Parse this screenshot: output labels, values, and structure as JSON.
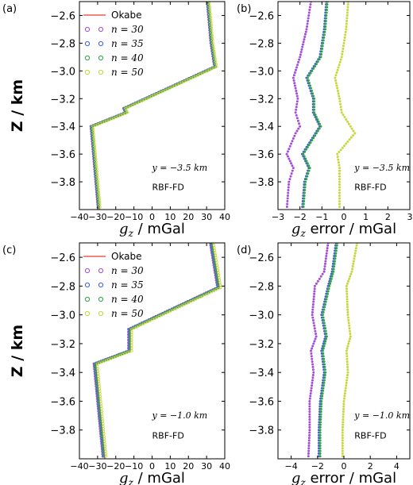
{
  "colors": {
    "okabe": "#e8402a",
    "n30": "#a44dd9",
    "n35": "#3d5fd8",
    "n40": "#2e9e4a",
    "n50": "#c6d83b",
    "axis": "#000000"
  },
  "legend": {
    "okabe": "Okabe",
    "n30": "n = 30",
    "n35": "n = 35",
    "n40": "n = 40",
    "n50": "n = 50"
  },
  "chart_data": [
    {
      "panel": "(a)",
      "type": "line",
      "xlabel": "g_z / mGal",
      "ylabel": "Z / km",
      "xlim": [
        -40,
        40
      ],
      "ylim": [
        -4.0,
        -2.5
      ],
      "xticks": [
        -40,
        -30,
        -20,
        -10,
        0,
        10,
        20,
        30,
        40
      ],
      "yticks": [
        -2.6,
        -2.8,
        -3.0,
        -3.2,
        -3.4,
        -3.6,
        -3.8
      ],
      "annotation": "y = −3.5 km",
      "method": "RBF-FD",
      "series": [
        {
          "name": "Okabe",
          "x": [
            31,
            33,
            35,
            -15,
            -14,
            -33,
            -29
          ],
          "y": [
            -2.5,
            -2.8,
            -2.97,
            -3.27,
            -3.3,
            -3.4,
            -4.0
          ]
        },
        {
          "name": "n = 30",
          "x": [
            30.3,
            32.3,
            34.3,
            -15.7,
            -14.7,
            -33.7,
            -29.7
          ],
          "y": [
            -2.5,
            -2.8,
            -2.97,
            -3.27,
            -3.3,
            -3.4,
            -4.0
          ]
        },
        {
          "name": "n = 35",
          "x": [
            30.6,
            32.6,
            34.6,
            -15.4,
            -14.4,
            -33.4,
            -29.4
          ],
          "y": [
            -2.5,
            -2.8,
            -2.97,
            -3.27,
            -3.3,
            -3.4,
            -4.0
          ]
        },
        {
          "name": "n = 40",
          "x": [
            30.8,
            32.8,
            34.8,
            -15.2,
            -14.2,
            -33.2,
            -29.2
          ],
          "y": [
            -2.5,
            -2.8,
            -2.97,
            -3.27,
            -3.3,
            -3.4,
            -4.0
          ]
        },
        {
          "name": "n = 50",
          "x": [
            31.5,
            33.5,
            35.5,
            -14.5,
            -13.5,
            -32.5,
            -28.5
          ],
          "y": [
            -2.5,
            -2.8,
            -2.97,
            -3.27,
            -3.3,
            -3.4,
            -4.0
          ]
        }
      ]
    },
    {
      "panel": "(b)",
      "type": "scatter",
      "xlabel": "g_z error / mGal",
      "xlim": [
        -3,
        3
      ],
      "ylim": [
        -4.0,
        -2.5
      ],
      "xticks": [
        -3,
        -2,
        -1,
        0,
        1,
        2,
        3
      ],
      "yticks": [
        -2.6,
        -2.8,
        -3.0,
        -3.2,
        -3.4,
        -3.6,
        -3.8
      ],
      "annotation": "y = −3.5 km",
      "method": "RBF-FD",
      "series": [
        {
          "name": "n = 30",
          "x": [
            -1.5,
            -1.7,
            -2.0,
            -2.3,
            -2.1,
            -2.2,
            -2.0,
            -2.2,
            -2.6,
            -2.3,
            -2.5,
            -2.6
          ],
          "y": [
            -2.5,
            -2.7,
            -2.9,
            -3.05,
            -3.2,
            -3.3,
            -3.4,
            -3.45,
            -3.6,
            -3.7,
            -3.8,
            -4.0
          ]
        },
        {
          "name": "n = 35",
          "x": [
            -0.8,
            -0.9,
            -1.1,
            -1.7,
            -1.4,
            -1.4,
            -1.1,
            -1.3,
            -1.9,
            -1.6,
            -1.8,
            -1.9
          ],
          "y": [
            -2.5,
            -2.7,
            -2.9,
            -3.05,
            -3.2,
            -3.3,
            -3.4,
            -3.45,
            -3.6,
            -3.7,
            -3.8,
            -4.0
          ]
        },
        {
          "name": "n = 40",
          "x": [
            -0.75,
            -0.85,
            -1.05,
            -1.65,
            -1.35,
            -1.35,
            -1.05,
            -1.25,
            -1.85,
            -1.55,
            -1.75,
            -1.85
          ],
          "y": [
            -2.5,
            -2.7,
            -2.9,
            -3.05,
            -3.2,
            -3.3,
            -3.4,
            -3.45,
            -3.6,
            -3.7,
            -3.8,
            -4.0
          ]
        },
        {
          "name": "n = 50",
          "x": [
            0.2,
            0.1,
            -0.1,
            -0.4,
            -0.2,
            -0.1,
            0.3,
            0.5,
            -0.3,
            -0.2,
            -0.2,
            -0.2
          ],
          "y": [
            -2.5,
            -2.7,
            -2.9,
            -3.05,
            -3.2,
            -3.3,
            -3.4,
            -3.45,
            -3.6,
            -3.7,
            -3.8,
            -4.0
          ]
        }
      ]
    },
    {
      "panel": "(c)",
      "type": "line",
      "xlabel": "g_z / mGal",
      "ylabel": "Z / km",
      "xlim": [
        -40,
        40
      ],
      "ylim": [
        -4.0,
        -2.5
      ],
      "xticks": [
        -40,
        -30,
        -20,
        -10,
        0,
        10,
        20,
        30,
        40
      ],
      "yticks": [
        -2.6,
        -2.8,
        -3.0,
        -3.2,
        -3.4,
        -3.6,
        -3.8
      ],
      "annotation": "y = −1.0 km",
      "method": "RBF-FD",
      "series": [
        {
          "name": "Okabe",
          "x": [
            33,
            37,
            -12,
            -12,
            -31,
            -26
          ],
          "y": [
            -2.5,
            -2.81,
            -3.1,
            -3.25,
            -3.34,
            -4.0
          ]
        },
        {
          "name": "n = 30",
          "x": [
            32,
            36,
            -13,
            -13,
            -32,
            -27
          ],
          "y": [
            -2.5,
            -2.81,
            -3.1,
            -3.25,
            -3.34,
            -4.0
          ]
        },
        {
          "name": "n = 35",
          "x": [
            32.4,
            36.4,
            -12.6,
            -12.6,
            -31.6,
            -26.6
          ],
          "y": [
            -2.5,
            -2.81,
            -3.1,
            -3.25,
            -3.34,
            -4.0
          ]
        },
        {
          "name": "n = 40",
          "x": [
            32.7,
            36.7,
            -12.3,
            -12.3,
            -31.3,
            -26.3
          ],
          "y": [
            -2.5,
            -2.81,
            -3.1,
            -3.25,
            -3.34,
            -4.0
          ]
        },
        {
          "name": "n = 50",
          "x": [
            33.8,
            37.8,
            -11.2,
            -11.2,
            -30.2,
            -25.2
          ],
          "y": [
            -2.5,
            -2.81,
            -3.1,
            -3.25,
            -3.34,
            -4.0
          ]
        }
      ]
    },
    {
      "panel": "(d)",
      "type": "scatter",
      "xlabel": "g_z error / mGal",
      "xlim": [
        -5,
        5
      ],
      "ylim": [
        -4.0,
        -2.5
      ],
      "xticks": [
        -4,
        -2,
        0,
        2,
        4
      ],
      "yticks": [
        -2.6,
        -2.8,
        -3.0,
        -3.2,
        -3.4,
        -3.6,
        -3.8
      ],
      "annotation": "y = −1.0 km",
      "method": "RBF-FD",
      "series": [
        {
          "name": "n = 30",
          "x": [
            -1.2,
            -1.5,
            -2.2,
            -2.4,
            -2.1,
            -2.5,
            -2.3,
            -2.6,
            -2.6,
            -2.7
          ],
          "y": [
            -2.5,
            -2.7,
            -2.8,
            -3.0,
            -3.15,
            -3.25,
            -3.4,
            -3.6,
            -3.8,
            -4.0
          ]
        },
        {
          "name": "n = 35",
          "x": [
            -0.6,
            -0.9,
            -1.2,
            -1.7,
            -1.4,
            -1.7,
            -1.5,
            -1.8,
            -1.9,
            -1.9
          ],
          "y": [
            -2.5,
            -2.7,
            -2.8,
            -3.0,
            -3.15,
            -3.25,
            -3.4,
            -3.6,
            -3.8,
            -4.0
          ]
        },
        {
          "name": "n = 40",
          "x": [
            -0.5,
            -0.8,
            -1.1,
            -1.6,
            -1.3,
            -1.6,
            -1.4,
            -1.7,
            -1.8,
            -1.8
          ],
          "y": [
            -2.5,
            -2.7,
            -2.8,
            -3.0,
            -3.15,
            -3.25,
            -3.4,
            -3.6,
            -3.8,
            -4.0
          ]
        },
        {
          "name": "n = 50",
          "x": [
            1.0,
            0.6,
            0.2,
            0.3,
            0.5,
            0.2,
            0.3,
            0.0,
            -0.1,
            -0.1
          ],
          "y": [
            -2.5,
            -2.7,
            -2.8,
            -3.0,
            -3.15,
            -3.25,
            -3.4,
            -3.6,
            -3.8,
            -4.0
          ]
        }
      ]
    }
  ]
}
